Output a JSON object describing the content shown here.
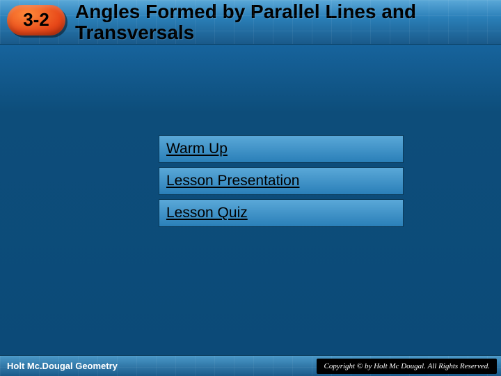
{
  "colors": {
    "background_gradient_top": "#2a7fb8",
    "background_gradient_bottom": "#0c4a78",
    "header_gradient_top": "#5aa8d8",
    "header_gradient_bottom": "#1a5a8a",
    "badge_gradient_light": "#ff8a3a",
    "badge_gradient_dark": "#c22a0a",
    "menu_item_top": "#5aa8d8",
    "menu_item_bottom": "#2a7fb8",
    "text_title": "#000000",
    "text_menu": "#000000",
    "text_footer": "#ffffff",
    "copyright_bg": "#000000"
  },
  "typography": {
    "title_font": "Verdana",
    "title_weight": 900,
    "title_size_pt": 21,
    "section_number_size_pt": 20,
    "menu_size_pt": 16,
    "footer_size_pt": 10,
    "copyright_family": "Times New Roman",
    "copyright_size_pt": 8
  },
  "header": {
    "section_number": "3-2",
    "title": "Angles Formed by Parallel Lines and Transversals"
  },
  "menu": {
    "items": [
      {
        "label": "Warm Up"
      },
      {
        "label": "Lesson Presentation"
      },
      {
        "label": "Lesson Quiz"
      }
    ]
  },
  "footer": {
    "publisher": "Holt Mc.Dougal Geometry",
    "copyright": "Copyright © by Holt Mc Dougal. All Rights Reserved."
  }
}
